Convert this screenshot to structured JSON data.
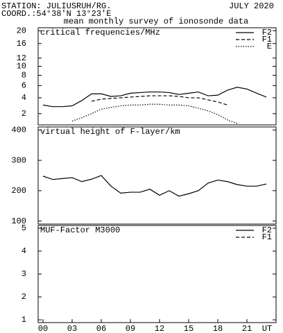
{
  "header": {
    "station": "STATION: JULIUSRUH/RG.",
    "date": "JULY 2020",
    "coord": "COORD.:54°38'N 13°23'E",
    "subtitle": "mean monthly survey of ionosonde data"
  },
  "chart_data": [
    {
      "type": "line",
      "title": "critical frequencies/MHz",
      "scale": "sqrt",
      "x": [
        0,
        1,
        2,
        3,
        4,
        5,
        6,
        7,
        8,
        9,
        10,
        11,
        12,
        13,
        14,
        15,
        16,
        17,
        18,
        19,
        20,
        21,
        22,
        23
      ],
      "xlim": [
        -0.5,
        24
      ],
      "ylim": [
        1,
        21
      ],
      "yticks": [
        2,
        4,
        6,
        8,
        10,
        12,
        16,
        20
      ],
      "legend": "top-right",
      "series": [
        {
          "name": "F2",
          "color": "#000000",
          "style": "solid",
          "values": [
            3.0,
            2.8,
            2.8,
            2.9,
            3.6,
            4.6,
            4.6,
            4.2,
            4.3,
            4.7,
            4.8,
            4.9,
            4.9,
            4.8,
            4.5,
            4.7,
            4.9,
            4.3,
            4.4,
            5.2,
            5.7,
            5.4,
            4.7,
            4.1
          ]
        },
        {
          "name": "F1",
          "color": "#000000",
          "style": "dashed",
          "values": [
            null,
            null,
            null,
            null,
            null,
            3.5,
            3.8,
            3.9,
            4.0,
            4.1,
            4.2,
            4.3,
            4.3,
            4.3,
            4.2,
            4.0,
            4.0,
            3.7,
            3.4,
            3.0,
            null,
            null,
            null,
            null
          ]
        },
        {
          "name": "E",
          "color": "#000000",
          "style": "dotted",
          "values": [
            null,
            null,
            null,
            1.3,
            1.6,
            2.0,
            2.5,
            2.7,
            2.9,
            3.0,
            3.0,
            3.1,
            3.1,
            3.0,
            3.0,
            2.9,
            2.6,
            2.3,
            1.9,
            1.4,
            1.1,
            null,
            null,
            null
          ]
        }
      ]
    },
    {
      "type": "line",
      "title": "virtual height of F-layer/km",
      "x": [
        0,
        1,
        2,
        3,
        4,
        5,
        6,
        7,
        8,
        9,
        10,
        11,
        12,
        13,
        14,
        15,
        16,
        17,
        18,
        19,
        20,
        21,
        22,
        23
      ],
      "xlim": [
        -0.5,
        24
      ],
      "ylim": [
        90,
        410
      ],
      "yticks": [
        100,
        200,
        300,
        400
      ],
      "series": [
        {
          "color": "#000000",
          "style": "solid",
          "values": [
            248,
            237,
            240,
            243,
            230,
            238,
            250,
            215,
            192,
            195,
            195,
            205,
            185,
            200,
            182,
            190,
            200,
            225,
            235,
            230,
            220,
            215,
            215,
            222
          ]
        }
      ]
    },
    {
      "type": "line",
      "title": "MUF-Factor M3000",
      "x": [
        0,
        1,
        2,
        3,
        4,
        5,
        6,
        7,
        8,
        9,
        10,
        11,
        12,
        13,
        14,
        15,
        16,
        17,
        18,
        19,
        20,
        21,
        22,
        23
      ],
      "xlim": [
        -0.5,
        24
      ],
      "ylim": [
        0.88,
        5.12
      ],
      "yticks": [
        1,
        2,
        3,
        4,
        5
      ],
      "legend": "top-right",
      "xticks": [
        {
          "value": 0,
          "label": "00"
        },
        {
          "value": 3,
          "label": "03"
        },
        {
          "value": 6,
          "label": "06"
        },
        {
          "value": 9,
          "label": "09"
        },
        {
          "value": 12,
          "label": "12"
        },
        {
          "value": 15,
          "label": "15"
        },
        {
          "value": 18,
          "label": "18"
        },
        {
          "value": 21,
          "label": "21"
        }
      ],
      "xlabel": "UT",
      "series": [
        {
          "name": "F2",
          "color": "#000000",
          "style": "solid",
          "values": [
            null,
            null,
            null,
            null,
            null,
            null,
            null,
            null,
            null,
            null,
            null,
            null,
            null,
            null,
            null,
            null,
            null,
            null,
            null,
            null,
            null,
            null,
            null,
            null
          ]
        },
        {
          "name": "F1",
          "color": "#000000",
          "style": "dashed",
          "values": [
            null,
            null,
            null,
            null,
            null,
            null,
            null,
            null,
            null,
            null,
            null,
            null,
            null,
            null,
            null,
            null,
            null,
            null,
            null,
            null,
            null,
            null,
            null,
            null
          ]
        }
      ]
    }
  ]
}
